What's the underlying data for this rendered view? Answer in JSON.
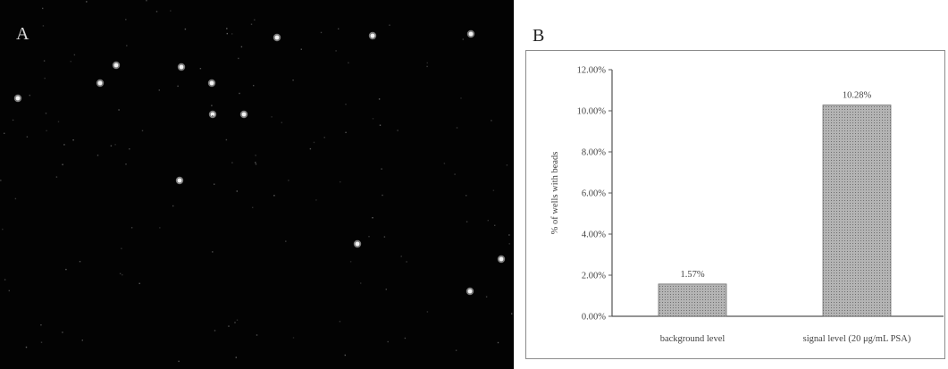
{
  "panels": {
    "a_label": "A",
    "b_label": "B"
  },
  "chart_data": {
    "type": "bar",
    "categories": [
      "background level",
      "signal level (20 μg/mL PSA)"
    ],
    "values": [
      1.57,
      10.28
    ],
    "data_labels": [
      "1.57%",
      "10.28%"
    ],
    "ylabel": "% of wells with beads",
    "ylim": [
      0,
      12
    ],
    "yticks": [
      0,
      2,
      4,
      6,
      8,
      10,
      12
    ],
    "ytick_labels": [
      "0.00%",
      "2.00%",
      "4.00%",
      "6.00%",
      "8.00%",
      "10.00%",
      "12.00%"
    ],
    "grid": false,
    "bar_color": "#a8a8a8",
    "title": "",
    "xlabel": ""
  }
}
